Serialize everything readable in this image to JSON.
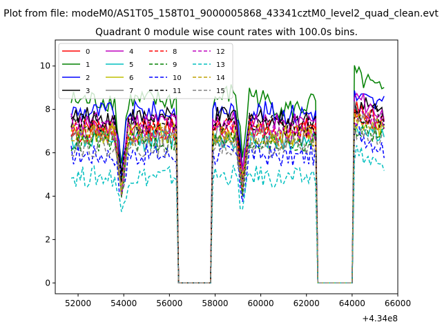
{
  "figure": {
    "suptitle": "Plot from file: modeM0/AS1T05_158T01_9000005868_43341cztM0_level2_quad_clean.evt",
    "background": "#ffffff"
  },
  "chart_data": {
    "type": "line",
    "title": "Quadrant 0 module wise count rates with 100.0s bins.",
    "xlabel": "",
    "ylabel": "",
    "xlim": [
      51000,
      66000
    ],
    "ylim": [
      -0.5,
      11.2
    ],
    "x_offset_label": "+4.34e8",
    "x_ticks": [
      52000,
      54000,
      56000,
      58000,
      60000,
      62000,
      64000,
      66000
    ],
    "y_ticks": [
      0,
      2,
      4,
      6,
      8,
      10
    ],
    "grid": false,
    "legend": {
      "placement": "top-left",
      "columns": 4
    },
    "gaps": [
      [
        56300,
        57900
      ],
      [
        62400,
        64100
      ]
    ],
    "dips": [
      53900,
      59200
    ],
    "series": [
      {
        "name": "0",
        "color": "#ff0000",
        "dash": "solid",
        "level": 7.2
      },
      {
        "name": "1",
        "color": "#008000",
        "dash": "solid",
        "level": 8.4
      },
      {
        "name": "2",
        "color": "#0000ff",
        "dash": "solid",
        "level": 7.9
      },
      {
        "name": "3",
        "color": "#000000",
        "dash": "solid",
        "level": 7.6
      },
      {
        "name": "4",
        "color": "#bf00bf",
        "dash": "solid",
        "level": 7.4
      },
      {
        "name": "5",
        "color": "#00bfbf",
        "dash": "solid",
        "level": 6.6
      },
      {
        "name": "6",
        "color": "#bfbf00",
        "dash": "solid",
        "level": 6.9
      },
      {
        "name": "7",
        "color": "#808080",
        "dash": "solid",
        "level": 6.7
      },
      {
        "name": "8",
        "color": "#ff0000",
        "dash": "dashed",
        "level": 7.0
      },
      {
        "name": "9",
        "color": "#008000",
        "dash": "dashed",
        "level": 6.5
      },
      {
        "name": "10",
        "color": "#0000ff",
        "dash": "dashed",
        "level": 5.9
      },
      {
        "name": "11",
        "color": "#000000",
        "dash": "dashed",
        "level": 7.3
      },
      {
        "name": "12",
        "color": "#bf00bf",
        "dash": "dashed",
        "level": 7.0
      },
      {
        "name": "13",
        "color": "#00bfbf",
        "dash": "dashed",
        "level": 4.9
      },
      {
        "name": "14",
        "color": "#bfa000",
        "dash": "dashed",
        "level": 6.8
      },
      {
        "name": "15",
        "color": "#808080",
        "dash": "dashed",
        "level": 6.3
      }
    ]
  }
}
